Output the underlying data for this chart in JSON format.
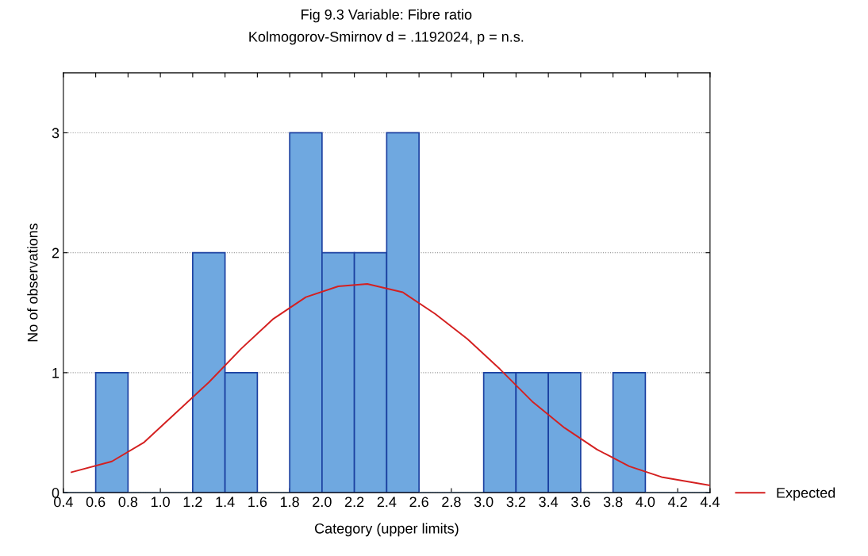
{
  "chart_data": {
    "type": "histogram",
    "title": "Fig 9.3 Variable: Fibre ratio",
    "subtitle": "Kolmogorov-Smirnov d = .1192024, p = n.s.",
    "xlabel": "Category (upper limits)",
    "ylabel": "No of observations",
    "bins": [
      0.4,
      0.6,
      0.8,
      1.0,
      1.2,
      1.4,
      1.6,
      1.8,
      2.0,
      2.2,
      2.4,
      2.6,
      2.8,
      3.0,
      3.2,
      3.4,
      3.6,
      3.8,
      4.0,
      4.2,
      4.4
    ],
    "values": [
      0,
      1,
      0,
      0,
      2,
      1,
      0,
      3,
      2,
      2,
      3,
      0,
      0,
      1,
      1,
      1,
      0,
      1,
      0,
      0
    ],
    "color": "#6fa8e0",
    "series": [
      {
        "name": "Expected",
        "type": "line",
        "color": "#d42020",
        "x": [
          0.45,
          0.7,
          0.9,
          1.1,
          1.3,
          1.5,
          1.7,
          1.9,
          2.1,
          2.28,
          2.5,
          2.7,
          2.9,
          3.1,
          3.3,
          3.5,
          3.7,
          3.9,
          4.1,
          4.4
        ],
        "values": [
          0.17,
          0.26,
          0.42,
          0.67,
          0.92,
          1.2,
          1.45,
          1.63,
          1.72,
          1.74,
          1.67,
          1.49,
          1.28,
          1.03,
          0.76,
          0.54,
          0.36,
          0.22,
          0.13,
          0.06
        ]
      }
    ],
    "xlim": [
      0.4,
      4.4
    ],
    "xticks": [
      0.4,
      0.6,
      0.8,
      {
        "value": 1.0,
        "label": "1.0"
      },
      1.2,
      1.4,
      1.6,
      1.8,
      {
        "value": 2.0,
        "label": "2.0"
      },
      2.2,
      2.4,
      2.6,
      2.8,
      {
        "value": 3.0,
        "label": "3.0"
      },
      3.2,
      3.4,
      3.6,
      3.8,
      {
        "value": 4.0,
        "label": "4.0"
      },
      4.2,
      4.4
    ],
    "ylim": [
      0,
      3.5
    ],
    "yticks": [
      0,
      1,
      2,
      3
    ],
    "grid": "y",
    "legend": "bottom right",
    "line_style": "solid",
    "marker": "none"
  }
}
